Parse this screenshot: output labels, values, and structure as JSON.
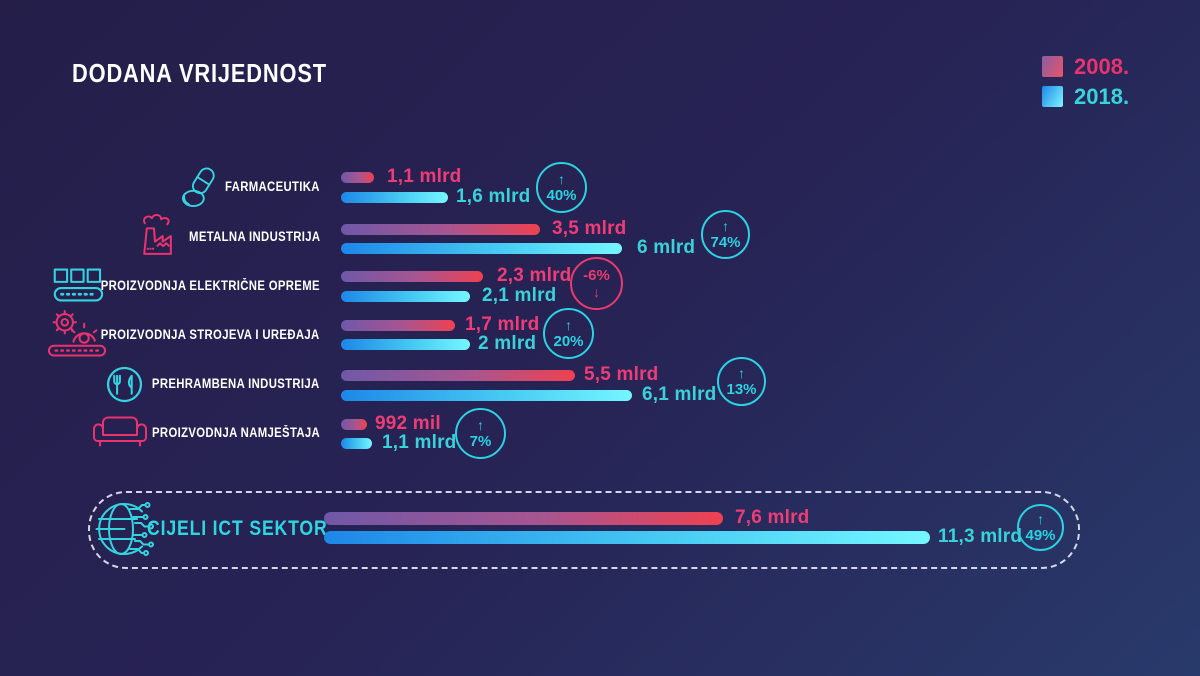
{
  "title": "DODANA VRIJEDNOST",
  "legend": {
    "items": [
      {
        "label": "2008.",
        "color": "#e8336e",
        "swatch": "purple-to-red-gradient"
      },
      {
        "label": "2018.",
        "color": "#38d4dc",
        "swatch": "blue-to-cyan-gradient"
      }
    ]
  },
  "colors": {
    "background_top": "#241e49",
    "background_bottom": "#283a6b",
    "value_2008_text": "#ee3d76",
    "value_2018_text": "#3ad2d8",
    "badge_up": "#2cd2e2",
    "badge_down": "#ea3a6e",
    "label_text": "#ffffff"
  },
  "chart_data": {
    "type": "bar",
    "orientation": "horizontal",
    "series_names": [
      "2008.",
      "2018."
    ],
    "title": "DODANA VRIJEDNOST",
    "legend_position": "top-right",
    "rows": [
      {
        "label": "FARMACEUTIKA",
        "icon": "pills-icon",
        "value_2008": 1.1,
        "value_2018": 1.6,
        "display_2008": "1,1 mlrd",
        "display_2018": "1,6 mlrd",
        "change": "40%",
        "direction": "up"
      },
      {
        "label": "METALNA INDUSTRIJA",
        "icon": "factory-icon",
        "value_2008": 3.5,
        "value_2018": 6,
        "display_2008": "3,5 mlrd",
        "display_2018": "6 mlrd",
        "change": "74%",
        "direction": "up"
      },
      {
        "label": "PROIZVODNJA ELEKTRIČNE OPREME",
        "icon": "conveyor-icon",
        "value_2008": 2.3,
        "value_2018": 2.1,
        "display_2008": "2,3 mlrd",
        "display_2018": "2,1 mlrd",
        "change": "-6%",
        "direction": "down"
      },
      {
        "label": "PROIZVODNJA STROJEVA I UREĐAJA",
        "icon": "gears-icon",
        "value_2008": 1.7,
        "value_2018": 2,
        "display_2008": "1,7 mlrd",
        "display_2018": "2 mlrd",
        "change": "20%",
        "direction": "up"
      },
      {
        "label": "PREHRAMBENA INDUSTRIJA",
        "icon": "food-icon",
        "value_2008": 5.5,
        "value_2018": 6.1,
        "display_2008": "5,5 mlrd",
        "display_2018": "6,1 mlrd",
        "change": "13%",
        "direction": "up"
      },
      {
        "label": "PROIZVODNJA NAMJEŠTAJA",
        "icon": "sofa-icon",
        "value_2008": 0.992,
        "value_2018": 1.1,
        "display_2008": "992 mil",
        "display_2018": "1,1 mlrd",
        "change": "7%",
        "direction": "up"
      }
    ],
    "total_row": {
      "label": "CIJELI ICT SEKTOR",
      "icon": "globe-icon",
      "value_2008": 7.6,
      "value_2018": 11.3,
      "display_2008": "7,6 mlrd",
      "display_2018": "11,3 mlrd",
      "change": "49%",
      "direction": "up"
    }
  }
}
